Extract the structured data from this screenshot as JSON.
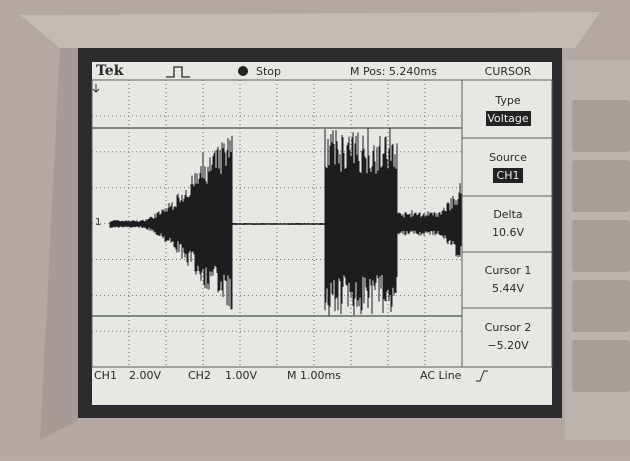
{
  "header": {
    "brand": "Tek",
    "status": "Stop",
    "position": "M Pos: 5.240ms",
    "menu_title": "CURSOR"
  },
  "channel_marker": "1",
  "menu": [
    {
      "label": "Type",
      "value": "Voltage"
    },
    {
      "label": "Source",
      "value": "CH1"
    },
    {
      "label": "Delta",
      "value": "10.6V"
    },
    {
      "label": "Cursor 1",
      "value": "5.44V"
    },
    {
      "label": "Cursor 2",
      "value": "−5.20V"
    }
  ],
  "footer": {
    "ch1": "CH1",
    "ch1_scale": "2.00V",
    "ch2": "CH2",
    "ch2_scale": "1.00V",
    "timebase": "M 1.00ms",
    "trigger": "AC Line"
  }
}
